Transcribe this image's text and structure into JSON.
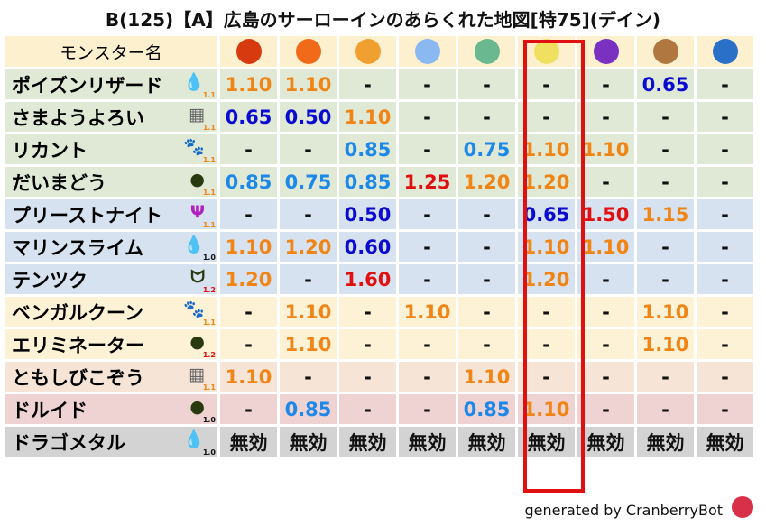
{
  "title": "B(125)【A】広島のサーローインのあらくれた地図[特75](デイン)",
  "header": {
    "name_label": "モンスター名",
    "elements": [
      {
        "icon": "fireball-icon",
        "color": "#d83a10"
      },
      {
        "icon": "flame-icon",
        "color": "#f06a1a"
      },
      {
        "icon": "explosion-icon",
        "color": "#f0a030"
      },
      {
        "icon": "ice-icon",
        "color": "#8ab8f0"
      },
      {
        "icon": "wind-icon",
        "color": "#6ab890"
      },
      {
        "icon": "light-icon",
        "color": "#f0e060"
      },
      {
        "icon": "dark-icon",
        "color": "#7a30c0"
      },
      {
        "icon": "earth-icon",
        "color": "#b07840"
      },
      {
        "icon": "water-icon",
        "color": "#2a70c8"
      }
    ]
  },
  "highlight_column": "light-icon",
  "rows": [
    {
      "name": "ポイズンリザード",
      "type_icon": "water-drop-icon",
      "glyph": "💧",
      "level": "1.1",
      "bg": "g",
      "values": [
        "1.10",
        "1.10",
        "-",
        "-",
        "-",
        "-",
        "-",
        "0.65",
        "-"
      ]
    },
    {
      "name": "さまようよろい",
      "type_icon": "brick-icon",
      "glyph": "▦",
      "level": "1.1",
      "bg": "g",
      "values": [
        "0.65",
        "0.50",
        "1.10",
        "-",
        "-",
        "-",
        "-",
        "-",
        "-"
      ]
    },
    {
      "name": "リカント",
      "type_icon": "paw-icon",
      "glyph": "🐾",
      "level": "1.1",
      "bg": "g",
      "values": [
        "-",
        "-",
        "0.85",
        "-",
        "0.75",
        "1.10",
        "1.10",
        "-",
        "-"
      ]
    },
    {
      "name": "だいまどう",
      "type_icon": "ghost-icon",
      "glyph": "●",
      "level": "1.1",
      "bg": "g",
      "values": [
        "0.85",
        "0.75",
        "0.85",
        "1.25",
        "1.20",
        "1.20",
        "-",
        "-",
        "-"
      ]
    },
    {
      "name": "プリーストナイト",
      "type_icon": "trident-icon",
      "glyph": "Ψ",
      "level": "1.1",
      "bg": "b",
      "values": [
        "-",
        "-",
        "0.50",
        "-",
        "-",
        "0.65",
        "1.50",
        "1.15",
        "-"
      ]
    },
    {
      "name": "マリンスライム",
      "type_icon": "water-drop-icon",
      "glyph": "💧",
      "level": "1.0",
      "bg": "b",
      "values": [
        "1.10",
        "1.20",
        "0.60",
        "-",
        "-",
        "1.10",
        "1.10",
        "-",
        "-"
      ]
    },
    {
      "name": "テンツク",
      "type_icon": "insect-icon",
      "glyph": "ᗢ",
      "level": "1.2",
      "bg": "b",
      "values": [
        "1.20",
        "-",
        "1.60",
        "-",
        "-",
        "1.20",
        "-",
        "-",
        "-"
      ]
    },
    {
      "name": "ベンガルクーン",
      "type_icon": "paw-icon",
      "glyph": "🐾",
      "level": "1.1",
      "bg": "y",
      "values": [
        "-",
        "1.10",
        "-",
        "1.10",
        "-",
        "-",
        "-",
        "1.10",
        "-"
      ]
    },
    {
      "name": "エリミネーター",
      "type_icon": "ghost-icon",
      "glyph": "●",
      "level": "1.2",
      "bg": "y",
      "values": [
        "-",
        "1.10",
        "-",
        "-",
        "-",
        "-",
        "-",
        "1.10",
        "-"
      ]
    },
    {
      "name": "ともしびこぞう",
      "type_icon": "brick-icon",
      "glyph": "▦",
      "level": "1.1",
      "bg": "p",
      "values": [
        "1.10",
        "-",
        "-",
        "-",
        "1.10",
        "-",
        "-",
        "-",
        "-"
      ]
    },
    {
      "name": "ドルイド",
      "type_icon": "ghost-icon",
      "glyph": "●",
      "level": "1.0",
      "bg": "r",
      "values": [
        "-",
        "0.85",
        "-",
        "-",
        "0.85",
        "1.10",
        "-",
        "-",
        "-"
      ]
    },
    {
      "name": "ドラゴメタル",
      "type_icon": "slime-icon",
      "glyph": "💧",
      "level": "1.0",
      "bg": "k",
      "values": [
        "無効",
        "無効",
        "無効",
        "無効",
        "無効",
        "無効",
        "無効",
        "無効",
        "無効"
      ]
    }
  ],
  "footer": {
    "text": "generated by CranberryBot",
    "icon": "cranberry-bot-icon"
  }
}
